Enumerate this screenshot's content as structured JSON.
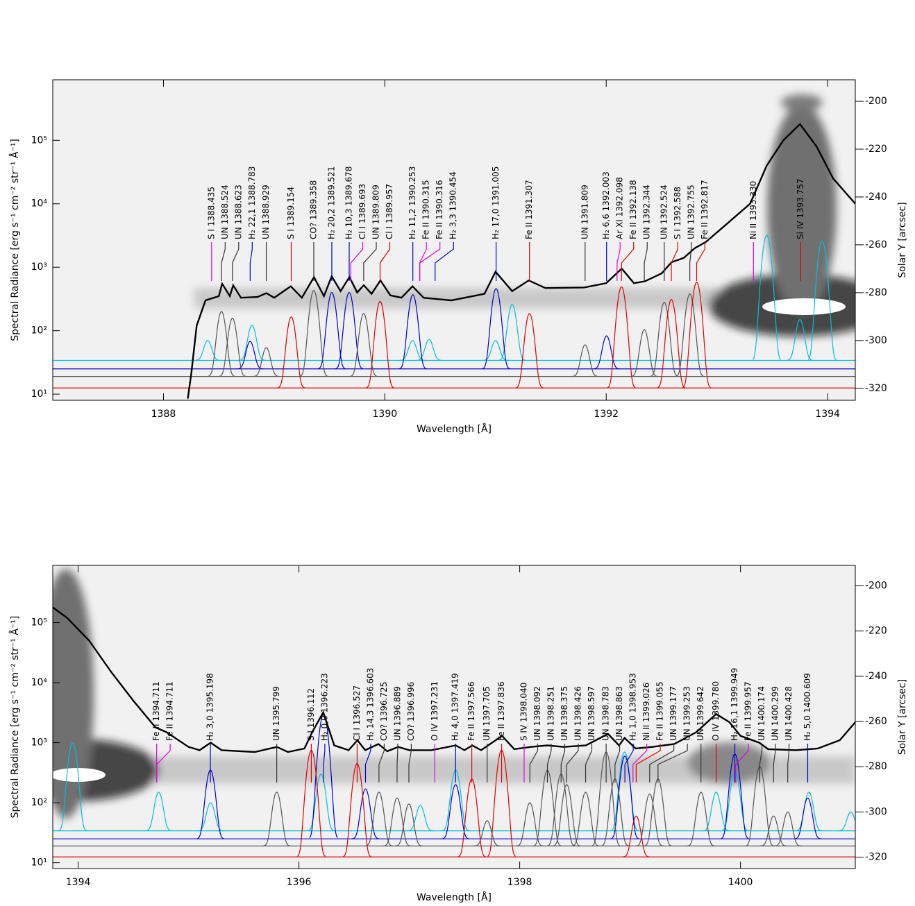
{
  "chart_data": [
    {
      "type": "line",
      "log_y": true,
      "xlabel": "Wavelength [Å]",
      "ylabel": "Spectral Radiance [erg s⁻¹ cm⁻² str⁻¹ Å⁻¹]",
      "y2label": "Solar Y [arcsec]",
      "xlim": [
        1387,
        1394.25
      ],
      "xticks": [
        1388,
        1390,
        1392,
        1394
      ],
      "ylim": [
        8,
        900000
      ],
      "yticks": [
        {
          "value": 10,
          "label": "10¹"
        },
        {
          "value": 100,
          "label": "10²"
        },
        {
          "value": 1000,
          "label": "10³"
        },
        {
          "value": 10000,
          "label": "10⁴"
        },
        {
          "value": 100000,
          "label": "10⁵"
        }
      ],
      "y2lim": [
        -325,
        -191
      ],
      "y2ticks": [
        -200,
        -220,
        -240,
        -260,
        -280,
        -300,
        -320
      ],
      "series": [
        {
          "color": "#000000",
          "x": [
            1388.22,
            1388.25,
            1388.3,
            1388.38,
            1388.5,
            1388.53,
            1388.6,
            1388.63,
            1388.7,
            1388.85,
            1388.93,
            1389.0,
            1389.15,
            1389.25,
            1389.36,
            1389.45,
            1389.52,
            1389.6,
            1389.68,
            1389.75,
            1389.81,
            1389.88,
            1389.96,
            1390.05,
            1390.15,
            1390.25,
            1390.35,
            1390.6,
            1390.9,
            1391.0,
            1391.15,
            1391.3,
            1391.45,
            1391.8,
            1392.0,
            1392.14,
            1392.25,
            1392.35,
            1392.5,
            1392.59,
            1392.7,
            1392.8,
            1392.9,
            1393.1,
            1393.3,
            1393.45,
            1393.6,
            1393.75,
            1393.9,
            1394.05,
            1394.25
          ],
          "values": [
            8.5,
            20,
            120,
            300,
            350,
            550,
            350,
            520,
            330,
            340,
            390,
            330,
            500,
            330,
            700,
            350,
            720,
            420,
            700,
            400,
            520,
            380,
            620,
            360,
            330,
            500,
            330,
            300,
            380,
            850,
            420,
            620,
            470,
            480,
            560,
            950,
            560,
            600,
            800,
            1200,
            1400,
            2000,
            2500,
            5000,
            10000,
            40000,
            100000,
            180000,
            80000,
            25000,
            10000
          ]
        }
      ],
      "models": [
        {
          "color": "#00bfdf",
          "baseline": 34,
          "peaks": {
            "x": [
              1388.4,
              1388.8,
              1390.25,
              1390.4,
              1391.0,
              1391.15,
              1393.45,
              1393.75,
              1393.95
            ],
            "values": [
              70,
              122,
              70,
              73,
              70,
              260,
              3200,
              150,
              2600
            ]
          }
        },
        {
          "color": "#0000cc",
          "baseline": 25,
          "peaks": {
            "x": [
              1388.783,
              1389.521,
              1389.678,
              1390.253,
              1391.005,
              1392.003
            ],
            "values": [
              68,
              400,
              400,
              370,
              460,
              83
            ]
          }
        },
        {
          "color": "#555555",
          "baseline": 19,
          "peaks": {
            "x": [
              1388.524,
              1388.623,
              1388.929,
              1389.358,
              1389.809,
              1391.809,
              1392.344,
              1392.524,
              1392.755
            ],
            "values": [
              201,
              157,
              54,
              430,
              187,
              60,
              104,
              280,
              380
            ]
          }
        },
        {
          "color": "#e00000",
          "baseline": 12.5,
          "peaks": {
            "x": [
              1389.154,
              1389.957,
              1391.307,
              1392.138,
              1392.588,
              1392.817
            ],
            "values": [
              165,
              290,
              187,
              490,
              310,
              580
            ]
          }
        }
      ],
      "line_ids": [
        {
          "label": "S I 1388.435",
          "color": "#e000e0",
          "x": 1388.435
        },
        {
          "label": "UN 1388.524",
          "color": "#333333",
          "x": 1388.524
        },
        {
          "label": "UN 1388.623",
          "color": "#333333",
          "x": 1388.623
        },
        {
          "label": "H₂ 22,1 1388.783",
          "color": "#0000cc",
          "x": 1388.783
        },
        {
          "label": "UN 1388.929",
          "color": "#333333",
          "x": 1388.929
        },
        {
          "label": "S I 1389.154",
          "color": "#e00000",
          "x": 1389.154
        },
        {
          "label": "CO? 1389.358",
          "color": "#333333",
          "x": 1389.358
        },
        {
          "label": "H₂ 20,2 1389.521",
          "color": "#0000cc",
          "x": 1389.521
        },
        {
          "label": "H₂ 10,3 1389.678",
          "color": "#0000cc",
          "x": 1389.678
        },
        {
          "label": "Cl I 1389.693",
          "color": "#e000e0",
          "x": 1389.693
        },
        {
          "label": "UN 1389.809",
          "color": "#333333",
          "x": 1389.809
        },
        {
          "label": "Cl I 1389.957",
          "color": "#e00000",
          "x": 1389.957
        },
        {
          "label": "H₂ 11,2 1390.253",
          "color": "#0000cc",
          "x": 1390.253
        },
        {
          "label": "Fe II 1390.315",
          "color": "#e000e0",
          "x": 1390.315
        },
        {
          "label": "Fe II 1390.316",
          "color": "#e000e0",
          "x": 1390.316
        },
        {
          "label": "H₂ 3,3 1390.454",
          "color": "#0000cc",
          "x": 1390.454
        },
        {
          "label": "H₂ 17,0 1391.005",
          "color": "#0000cc",
          "x": 1391.005
        },
        {
          "label": "Fe II 1391.307",
          "color": "#e00000",
          "x": 1391.307
        },
        {
          "label": "UN 1391.809",
          "color": "#333333",
          "x": 1391.809
        },
        {
          "label": "H₂ 6,6 1392.003",
          "color": "#0000cc",
          "x": 1392.003
        },
        {
          "label": "Ar XI 1392.098",
          "color": "#e000e0",
          "x": 1392.098
        },
        {
          "label": "Fe II 1392.138",
          "color": "#e00000",
          "x": 1392.138
        },
        {
          "label": "UN 1392.344",
          "color": "#333333",
          "x": 1392.344
        },
        {
          "label": "UN 1392.524",
          "color": "#333333",
          "x": 1392.524
        },
        {
          "label": "S I 1392.588",
          "color": "#e00000",
          "x": 1392.588
        },
        {
          "label": "UN 1392.755",
          "color": "#333333",
          "x": 1392.755
        },
        {
          "label": "Fe II 1392.817",
          "color": "#e00000",
          "x": 1392.817
        },
        {
          "label": "Ni II 1393.330",
          "color": "#e000e0",
          "x": 1393.33
        },
        {
          "label": "Si IV 1393.757",
          "color": "#e00000",
          "x": 1393.757
        }
      ]
    },
    {
      "type": "line",
      "log_y": true,
      "xlabel": "Wavelength [Å]",
      "ylabel": "Spectral Radiance [erg s⁻¹ cm⁻² str⁻¹ Å⁻¹]",
      "y2label": "Solar Y [arcsec]",
      "xlim": [
        1393.77,
        1401.04
      ],
      "xticks": [
        1394,
        1396,
        1398,
        1400
      ],
      "ylim": [
        8,
        900000
      ],
      "yticks": [
        {
          "value": 10,
          "label": "10¹"
        },
        {
          "value": 100,
          "label": "10²"
        },
        {
          "value": 1000,
          "label": "10³"
        },
        {
          "value": 10000,
          "label": "10⁴"
        },
        {
          "value": 100000,
          "label": "10⁵"
        }
      ],
      "y2lim": [
        -325,
        -191
      ],
      "y2ticks": [
        -200,
        -220,
        -240,
        -260,
        -280,
        -300,
        -320
      ],
      "series": [
        {
          "color": "#000000",
          "x": [
            1393.77,
            1393.9,
            1394.1,
            1394.3,
            1394.5,
            1394.7,
            1394.8,
            1395.0,
            1395.1,
            1395.2,
            1395.3,
            1395.6,
            1395.8,
            1395.9,
            1396.05,
            1396.12,
            1396.22,
            1396.32,
            1396.45,
            1396.53,
            1396.6,
            1396.72,
            1396.8,
            1396.9,
            1397.0,
            1397.2,
            1397.42,
            1397.5,
            1397.57,
            1397.65,
            1397.84,
            1397.95,
            1398.1,
            1398.25,
            1398.4,
            1398.6,
            1398.8,
            1398.9,
            1398.95,
            1399.05,
            1399.2,
            1399.4,
            1399.6,
            1399.78,
            1399.9,
            1400.0,
            1400.17,
            1400.25,
            1400.5,
            1400.7,
            1400.9,
            1401.04
          ],
          "values": [
            180000,
            120000,
            50000,
            15000,
            5000,
            1800,
            1500,
            850,
            750,
            1000,
            750,
            700,
            850,
            700,
            800,
            1500,
            3200,
            900,
            750,
            1100,
            750,
            950,
            720,
            850,
            750,
            750,
            900,
            750,
            900,
            750,
            1300,
            780,
            850,
            900,
            850,
            900,
            1400,
            900,
            1200,
            800,
            850,
            950,
            1500,
            3000,
            2200,
            1300,
            1000,
            780,
            750,
            800,
            1100,
            2200
          ]
        }
      ],
      "models": [
        {
          "color": "#00bfdf",
          "baseline": 34,
          "peaks": {
            "x": [
              1393.95,
              1394.73,
              1395.2,
              1396.2,
              1397.1,
              1397.42,
              1398.95,
              1399.78,
              1399.95,
              1400.62,
              1401.0
            ],
            "values": [
              1000,
              150,
              100,
              300,
              90,
              350,
              700,
              150,
              330,
              150,
              70
            ]
          }
        },
        {
          "color": "#0000cc",
          "baseline": 25,
          "peaks": {
            "x": [
              1395.198,
              1396.223,
              1396.603,
              1397.419,
              1398.953,
              1399.949,
              1400.609
            ],
            "values": [
              350,
              3000,
              170,
              200,
              600,
              650,
              120
            ]
          }
        },
        {
          "color": "#555555",
          "baseline": 19,
          "peaks": {
            "x": [
              1395.799,
              1396.725,
              1396.889,
              1396.996,
              1397.705,
              1398.092,
              1398.251,
              1398.375,
              1398.426,
              1398.597,
              1398.783,
              1398.863,
              1399.177,
              1399.253,
              1399.642,
              1400.174,
              1400.299,
              1400.428
            ],
            "values": [
              150,
              150,
              120,
              95,
              50,
              100,
              350,
              300,
              200,
              150,
              700,
              250,
              140,
              250,
              150,
              400,
              60,
              70
            ]
          }
        },
        {
          "color": "#e00000",
          "baseline": 12.5,
          "peaks": {
            "x": [
              1396.112,
              1396.527,
              1397.566,
              1397.836,
              1399.055
            ],
            "values": [
              750,
              450,
              250,
              750,
              60
            ]
          }
        }
      ],
      "line_ids": [
        {
          "label": "Fe II 1394.711",
          "color": "#e000e0",
          "x": 1394.711
        },
        {
          "label": "Fe II 1394.711",
          "color": "#e000e0",
          "x": 1394.711
        },
        {
          "label": "H₂ 3,0 1395.198",
          "color": "#0000cc",
          "x": 1395.198
        },
        {
          "label": "UN 1395.799",
          "color": "#333333",
          "x": 1395.799
        },
        {
          "label": "S I 1396.112",
          "color": "#e00000",
          "x": 1396.112
        },
        {
          "label": "H₂ 0,0 1396.223",
          "color": "#0000cc",
          "x": 1396.223
        },
        {
          "label": "Cl I 1396.527",
          "color": "#e00000",
          "x": 1396.527
        },
        {
          "label": "H₂ 14,3 1396.603",
          "color": "#0000cc",
          "x": 1396.603
        },
        {
          "label": "CO? 1396.725",
          "color": "#333333",
          "x": 1396.725
        },
        {
          "label": "UN 1396.889",
          "color": "#333333",
          "x": 1396.889
        },
        {
          "label": "CO? 1396.996",
          "color": "#333333",
          "x": 1396.996
        },
        {
          "label": "O IV 1397.231",
          "color": "#e000e0",
          "x": 1397.231
        },
        {
          "label": "H₂ 4,0 1397.419",
          "color": "#0000cc",
          "x": 1397.419
        },
        {
          "label": "Fe II 1397.566",
          "color": "#e00000",
          "x": 1397.566
        },
        {
          "label": "UN 1397.705",
          "color": "#333333",
          "x": 1397.705
        },
        {
          "label": "Fe II 1397.836",
          "color": "#e00000",
          "x": 1397.836
        },
        {
          "label": "S IV 1398.040",
          "color": "#e000e0",
          "x": 1398.04
        },
        {
          "label": "UN 1398.092",
          "color": "#333333",
          "x": 1398.092
        },
        {
          "label": "UN 1398.251",
          "color": "#333333",
          "x": 1398.251
        },
        {
          "label": "UN 1398.375",
          "color": "#333333",
          "x": 1398.375
        },
        {
          "label": "UN 1398.426",
          "color": "#333333",
          "x": 1398.426
        },
        {
          "label": "UN 1398.597",
          "color": "#333333",
          "x": 1398.597
        },
        {
          "label": "UN 1398.783",
          "color": "#333333",
          "x": 1398.783
        },
        {
          "label": "UN 1398.863",
          "color": "#333333",
          "x": 1398.863
        },
        {
          "label": "H₂ 1,0 1398.953",
          "color": "#0000cc",
          "x": 1398.953
        },
        {
          "label": "Ni II 1399.026",
          "color": "#e000e0",
          "x": 1399.026
        },
        {
          "label": "Fe II 1399.055",
          "color": "#e00000",
          "x": 1399.055
        },
        {
          "label": "UN 1399.177",
          "color": "#333333",
          "x": 1399.177
        },
        {
          "label": "UN 1399.253",
          "color": "#333333",
          "x": 1399.253
        },
        {
          "label": "UN 1399.642",
          "color": "#333333",
          "x": 1399.642
        },
        {
          "label": "O IV 1399.780",
          "color": "#e00000",
          "x": 1399.78
        },
        {
          "label": "H₂ 16,1 1399.949",
          "color": "#0000cc",
          "x": 1399.949
        },
        {
          "label": "Fe II 1399.957",
          "color": "#e000e0",
          "x": 1399.957
        },
        {
          "label": "UN 1400.174",
          "color": "#333333",
          "x": 1400.174
        },
        {
          "label": "UN 1400.299",
          "color": "#333333",
          "x": 1400.299
        },
        {
          "label": "UN 1400.428",
          "color": "#333333",
          "x": 1400.428
        },
        {
          "label": "H₂ 5,0 1400.609",
          "color": "#0000cc",
          "x": 1400.609
        }
      ]
    }
  ]
}
